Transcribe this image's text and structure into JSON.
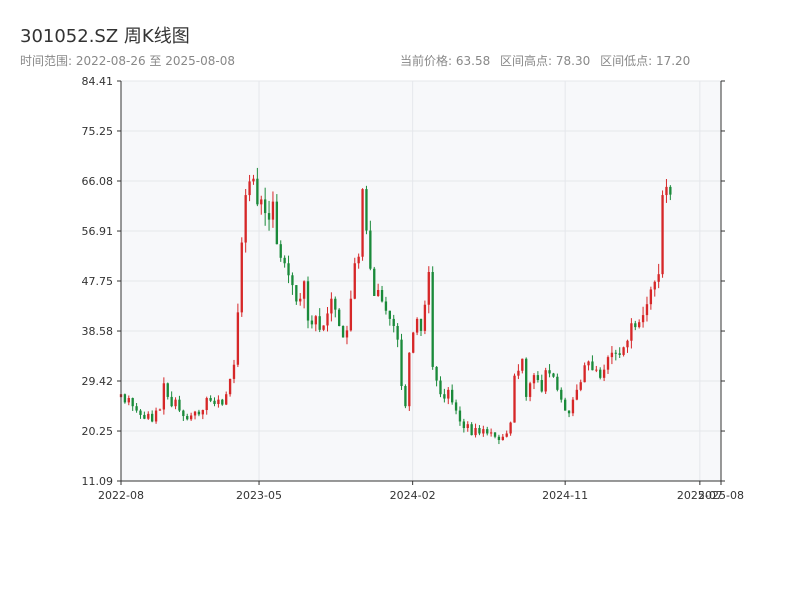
{
  "header": {
    "title": "301052.SZ 周K线图",
    "subtitle": "时间范围: 2022-08-26 至 2025-08-08",
    "stats": [
      "当前价格: 63.58",
      "区间高点: 78.30",
      "区间低点: 17.20"
    ]
  },
  "colors": {
    "up": "#d62728",
    "down": "#1a8a3a",
    "axis": "#333333",
    "grid": "#e5e7eb",
    "plot_bg": "#f7f8fa"
  },
  "chart_data": {
    "type": "candlestick",
    "title": "301052.SZ 周K线图",
    "xlabel": "",
    "ylabel": "",
    "ylim": [
      11.09,
      84.41
    ],
    "y_ticks": [
      "84.41",
      "75.25",
      "66.08",
      "56.91",
      "47.75",
      "38.58",
      "29.42",
      "20.25",
      "11.09"
    ],
    "y_tick_values": [
      84.41,
      75.25,
      66.08,
      56.91,
      47.75,
      38.58,
      29.42,
      20.25,
      11.09
    ],
    "x_ticks": [
      "2022-08",
      "2023-05",
      "2024-02",
      "2024-11",
      "2025-07",
      "2025-08"
    ],
    "x_tick_dates": [
      "2022-08-26",
      "2023-05-01",
      "2024-02-01",
      "2024-11-01",
      "2025-07-01",
      "2025-08-08"
    ],
    "x_range": [
      "2022-08-26",
      "2025-08-08"
    ],
    "grid": true,
    "legend": "none",
    "date_start": "2022-08-26",
    "step_days": 7,
    "closes": [
      27.0,
      25.5,
      26.3,
      24.8,
      24.0,
      23.2,
      22.5,
      23.4,
      22.0,
      24.0,
      24.2,
      29.0,
      26.5,
      24.8,
      26.0,
      24.0,
      23.0,
      22.4,
      23.1,
      23.8,
      23.3,
      24.1,
      26.3,
      25.8,
      25.2,
      26.0,
      25.1,
      27.0,
      29.8,
      32.4,
      42.0,
      54.8,
      63.5,
      66.0,
      66.5,
      61.8,
      62.7,
      60.2,
      59.0,
      62.3,
      54.5,
      52.0,
      51.0,
      48.8,
      47.0,
      44.0,
      44.5,
      47.7,
      40.5,
      39.8,
      41.3,
      38.8,
      39.6,
      41.8,
      44.5,
      42.5,
      39.5,
      37.4,
      38.7,
      44.5,
      51.0,
      52.2,
      64.6,
      57.0,
      50.0,
      45.0,
      46.1,
      44.0,
      42.3,
      40.8,
      39.5,
      37.0,
      28.5,
      24.8,
      34.6,
      38.3,
      40.8,
      38.6,
      43.4,
      49.4,
      32.0,
      29.5,
      27.0,
      26.2,
      27.8,
      25.5,
      24.0,
      22.0,
      20.8,
      21.5,
      19.5,
      20.8,
      19.8,
      20.6,
      19.8,
      20.0,
      19.2,
      18.6,
      19.2,
      19.8,
      21.8,
      30.4,
      31.3,
      33.5,
      26.5,
      29.0,
      30.5,
      29.6,
      27.5,
      31.4,
      30.8,
      30.2,
      27.8,
      26.0,
      24.0,
      23.5,
      26.0,
      27.8,
      29.2,
      32.3,
      33.0,
      31.4,
      31.5,
      30.0,
      31.5,
      33.8,
      34.6,
      34.5,
      34.2,
      35.6,
      36.8,
      40.0,
      39.3,
      40.2,
      41.5,
      43.5,
      46.2,
      47.6,
      49.0,
      63.5,
      65.0,
      63.58
    ]
  },
  "watermark_hint": ""
}
